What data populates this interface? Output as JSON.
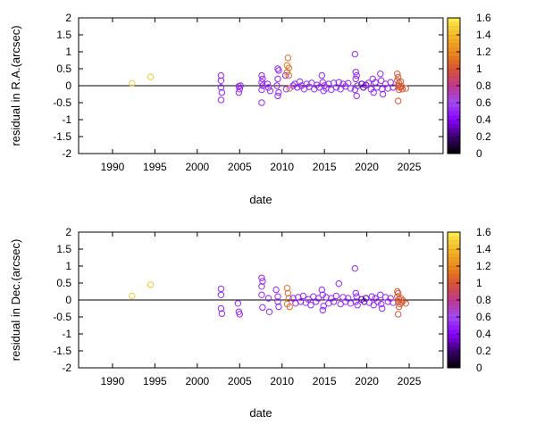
{
  "chart_data": [
    {
      "type": "scatter",
      "xlabel": "date",
      "ylabel": "residual in R.A.(arcsec)",
      "xlim": [
        1986,
        2029
      ],
      "ylim": [
        -2,
        2
      ],
      "xticks": [
        "1990",
        "1995",
        "2000",
        "2005",
        "2010",
        "2015",
        "2020",
        "2025"
      ],
      "yticks": [
        "-2",
        "-1.5",
        "-1",
        "-0.5",
        "0",
        "0.5",
        "1",
        "1.5",
        "2"
      ],
      "zero_line": true,
      "grid": false,
      "colorbar": {
        "range": [
          0,
          1.6
        ],
        "ticks": [
          "0",
          "0.2",
          "0.4",
          "0.6",
          "0.8",
          "1",
          "1.2",
          "1.4",
          "1.6"
        ],
        "palette": [
          "#000000",
          "#3b006e",
          "#8a00ff",
          "#a24af2",
          "#c0388f",
          "#d8542f",
          "#ee8a1c",
          "#f4b82a",
          "#fff04a"
        ]
      },
      "points": [
        {
          "x": 1992.3,
          "y": 0.07,
          "c": 1.45
        },
        {
          "x": 1994.5,
          "y": 0.26,
          "c": 1.45
        },
        {
          "x": 2002.8,
          "y": 0.3,
          "c": 0.5
        },
        {
          "x": 2002.8,
          "y": 0.15,
          "c": 0.5
        },
        {
          "x": 2002.8,
          "y": -0.05,
          "c": 0.5
        },
        {
          "x": 2002.9,
          "y": -0.2,
          "c": 0.5
        },
        {
          "x": 2002.8,
          "y": -0.42,
          "c": 0.5
        },
        {
          "x": 2004.9,
          "y": -0.02,
          "c": 0.5
        },
        {
          "x": 2005.0,
          "y": -0.1,
          "c": 0.5
        },
        {
          "x": 2004.9,
          "y": -0.2,
          "c": 0.5
        },
        {
          "x": 2005.1,
          "y": 0.0,
          "c": 0.5
        },
        {
          "x": 2007.6,
          "y": 0.3,
          "c": 0.5
        },
        {
          "x": 2007.7,
          "y": 0.2,
          "c": 0.5
        },
        {
          "x": 2007.6,
          "y": 0.1,
          "c": 0.5
        },
        {
          "x": 2007.7,
          "y": 0.0,
          "c": 0.5
        },
        {
          "x": 2007.6,
          "y": -0.12,
          "c": 0.5
        },
        {
          "x": 2007.6,
          "y": -0.5,
          "c": 0.5
        },
        {
          "x": 2008.3,
          "y": 0.05,
          "c": 0.5
        },
        {
          "x": 2008.4,
          "y": -0.05,
          "c": 0.5
        },
        {
          "x": 2008.6,
          "y": -0.15,
          "c": 0.5
        },
        {
          "x": 2009.5,
          "y": 0.5,
          "c": 0.5
        },
        {
          "x": 2009.6,
          "y": 0.45,
          "c": 0.5
        },
        {
          "x": 2009.5,
          "y": 0.2,
          "c": 0.5
        },
        {
          "x": 2009.4,
          "y": 0.0,
          "c": 0.5
        },
        {
          "x": 2009.6,
          "y": -0.2,
          "c": 0.5
        },
        {
          "x": 2009.5,
          "y": -0.3,
          "c": 0.5
        },
        {
          "x": 2010.4,
          "y": 0.3,
          "c": 0.5
        },
        {
          "x": 2010.5,
          "y": -0.1,
          "c": 0.5
        },
        {
          "x": 2010.7,
          "y": 0.82,
          "c": 1.1
        },
        {
          "x": 2010.6,
          "y": 0.6,
          "c": 1.1
        },
        {
          "x": 2010.8,
          "y": 0.52,
          "c": 1.1
        },
        {
          "x": 2010.6,
          "y": 0.4,
          "c": 1.1
        },
        {
          "x": 2010.8,
          "y": 0.3,
          "c": 1.1
        },
        {
          "x": 2010.9,
          "y": -0.08,
          "c": 1.1
        },
        {
          "x": 2011.3,
          "y": 0.0,
          "c": 0.5
        },
        {
          "x": 2011.5,
          "y": 0.05,
          "c": 0.5
        },
        {
          "x": 2011.8,
          "y": -0.05,
          "c": 0.5
        },
        {
          "x": 2012.1,
          "y": 0.12,
          "c": 0.5
        },
        {
          "x": 2012.3,
          "y": 0.0,
          "c": 0.5
        },
        {
          "x": 2012.6,
          "y": -0.1,
          "c": 0.5
        },
        {
          "x": 2012.9,
          "y": 0.05,
          "c": 0.5
        },
        {
          "x": 2013.2,
          "y": -0.03,
          "c": 0.5
        },
        {
          "x": 2013.5,
          "y": 0.08,
          "c": 0.5
        },
        {
          "x": 2013.8,
          "y": -0.1,
          "c": 0.5
        },
        {
          "x": 2014.1,
          "y": 0.02,
          "c": 0.5
        },
        {
          "x": 2014.4,
          "y": -0.05,
          "c": 0.5
        },
        {
          "x": 2014.7,
          "y": 0.3,
          "c": 0.5
        },
        {
          "x": 2014.8,
          "y": 0.1,
          "c": 0.5
        },
        {
          "x": 2014.9,
          "y": -0.15,
          "c": 0.5
        },
        {
          "x": 2015.0,
          "y": 0.0,
          "c": 0.5
        },
        {
          "x": 2015.2,
          "y": -0.08,
          "c": 0.5
        },
        {
          "x": 2015.5,
          "y": 0.05,
          "c": 0.5
        },
        {
          "x": 2015.8,
          "y": -0.12,
          "c": 0.5
        },
        {
          "x": 2016.1,
          "y": 0.08,
          "c": 0.5
        },
        {
          "x": 2016.4,
          "y": -0.05,
          "c": 0.5
        },
        {
          "x": 2016.7,
          "y": 0.1,
          "c": 0.5
        },
        {
          "x": 2016.9,
          "y": -0.1,
          "c": 0.5
        },
        {
          "x": 2017.2,
          "y": 0.05,
          "c": 0.5
        },
        {
          "x": 2017.5,
          "y": -0.02,
          "c": 0.5
        },
        {
          "x": 2017.8,
          "y": 0.07,
          "c": 0.5
        },
        {
          "x": 2018.1,
          "y": -0.08,
          "c": 0.5
        },
        {
          "x": 2018.6,
          "y": 0.93,
          "c": 0.5
        },
        {
          "x": 2018.7,
          "y": 0.4,
          "c": 0.5
        },
        {
          "x": 2018.8,
          "y": 0.3,
          "c": 0.5
        },
        {
          "x": 2018.7,
          "y": 0.2,
          "c": 0.5
        },
        {
          "x": 2018.9,
          "y": 0.0,
          "c": 0.5
        },
        {
          "x": 2018.6,
          "y": -0.12,
          "c": 0.5
        },
        {
          "x": 2018.8,
          "y": -0.3,
          "c": 0.5
        },
        {
          "x": 2019.4,
          "y": 0.05,
          "c": 0.3
        },
        {
          "x": 2019.6,
          "y": -0.05,
          "c": 0.3
        },
        {
          "x": 2019.9,
          "y": 0.02,
          "c": 0.3
        },
        {
          "x": 2020.2,
          "y": 0.08,
          "c": 0.5
        },
        {
          "x": 2020.5,
          "y": -0.1,
          "c": 0.5
        },
        {
          "x": 2020.7,
          "y": 0.2,
          "c": 0.5
        },
        {
          "x": 2020.8,
          "y": -0.2,
          "c": 0.5
        },
        {
          "x": 2021.0,
          "y": 0.1,
          "c": 0.5
        },
        {
          "x": 2021.2,
          "y": -0.05,
          "c": 0.5
        },
        {
          "x": 2021.6,
          "y": 0.35,
          "c": 0.5
        },
        {
          "x": 2021.7,
          "y": 0.15,
          "c": 0.5
        },
        {
          "x": 2021.8,
          "y": -0.1,
          "c": 0.5
        },
        {
          "x": 2021.9,
          "y": -0.25,
          "c": 0.5
        },
        {
          "x": 2022.2,
          "y": 0.05,
          "c": 0.5
        },
        {
          "x": 2022.5,
          "y": -0.08,
          "c": 0.5
        },
        {
          "x": 2022.8,
          "y": 0.1,
          "c": 0.5
        },
        {
          "x": 2023.1,
          "y": -0.05,
          "c": 0.5
        },
        {
          "x": 2023.6,
          "y": 0.35,
          "c": 1.0
        },
        {
          "x": 2023.7,
          "y": 0.25,
          "c": 1.0
        },
        {
          "x": 2023.6,
          "y": 0.15,
          "c": 1.0
        },
        {
          "x": 2023.8,
          "y": 0.08,
          "c": 1.0
        },
        {
          "x": 2023.7,
          "y": 0.0,
          "c": 1.0
        },
        {
          "x": 2023.9,
          "y": -0.05,
          "c": 1.0
        },
        {
          "x": 2023.8,
          "y": -0.12,
          "c": 1.0
        },
        {
          "x": 2023.7,
          "y": -0.45,
          "c": 1.0
        },
        {
          "x": 2024.0,
          "y": 0.12,
          "c": 1.0
        },
        {
          "x": 2024.1,
          "y": -0.02,
          "c": 1.0
        },
        {
          "x": 2024.2,
          "y": -0.1,
          "c": 1.0
        },
        {
          "x": 2024.6,
          "y": -0.08,
          "c": 1.0
        }
      ]
    },
    {
      "type": "scatter",
      "xlabel": "date",
      "ylabel": "residual in Dec.(arcsec)",
      "xlim": [
        1986,
        2029
      ],
      "ylim": [
        -2,
        2
      ],
      "xticks": [
        "1990",
        "1995",
        "2000",
        "2005",
        "2010",
        "2015",
        "2020",
        "2025"
      ],
      "yticks": [
        "-2",
        "-1.5",
        "-1",
        "-0.5",
        "0",
        "0.5",
        "1",
        "1.5",
        "2"
      ],
      "zero_line": true,
      "grid": false,
      "colorbar": {
        "range": [
          0,
          1.6
        ],
        "ticks": [
          "0",
          "0.2",
          "0.4",
          "0.6",
          "0.8",
          "1",
          "1.2",
          "1.4",
          "1.6"
        ],
        "palette": [
          "#000000",
          "#3b006e",
          "#8a00ff",
          "#a24af2",
          "#c0388f",
          "#d8542f",
          "#ee8a1c",
          "#f4b82a",
          "#fff04a"
        ]
      },
      "points": [
        {
          "x": 1992.3,
          "y": 0.12,
          "c": 1.45
        },
        {
          "x": 1994.5,
          "y": 0.45,
          "c": 1.45
        },
        {
          "x": 2002.8,
          "y": 0.33,
          "c": 0.5
        },
        {
          "x": 2002.8,
          "y": 0.15,
          "c": 0.5
        },
        {
          "x": 2002.8,
          "y": -0.25,
          "c": 0.5
        },
        {
          "x": 2002.9,
          "y": -0.4,
          "c": 0.5
        },
        {
          "x": 2004.8,
          "y": -0.1,
          "c": 0.5
        },
        {
          "x": 2004.9,
          "y": -0.35,
          "c": 0.5
        },
        {
          "x": 2005.0,
          "y": -0.42,
          "c": 0.5
        },
        {
          "x": 2007.6,
          "y": 0.65,
          "c": 0.5
        },
        {
          "x": 2007.7,
          "y": 0.55,
          "c": 0.5
        },
        {
          "x": 2007.6,
          "y": 0.4,
          "c": 0.5
        },
        {
          "x": 2007.6,
          "y": 0.15,
          "c": 0.5
        },
        {
          "x": 2007.7,
          "y": -0.22,
          "c": 0.5
        },
        {
          "x": 2008.5,
          "y": -0.35,
          "c": 0.5
        },
        {
          "x": 2008.4,
          "y": 0.05,
          "c": 0.5
        },
        {
          "x": 2009.3,
          "y": 0.3,
          "c": 0.5
        },
        {
          "x": 2009.5,
          "y": 0.1,
          "c": 0.5
        },
        {
          "x": 2009.5,
          "y": -0.05,
          "c": 0.5
        },
        {
          "x": 2009.6,
          "y": -0.2,
          "c": 0.5
        },
        {
          "x": 2010.6,
          "y": 0.35,
          "c": 1.1
        },
        {
          "x": 2010.7,
          "y": 0.2,
          "c": 1.1
        },
        {
          "x": 2010.8,
          "y": 0.05,
          "c": 1.1
        },
        {
          "x": 2010.6,
          "y": -0.12,
          "c": 1.1
        },
        {
          "x": 2010.9,
          "y": -0.2,
          "c": 1.1
        },
        {
          "x": 2011.3,
          "y": 0.05,
          "c": 0.5
        },
        {
          "x": 2011.6,
          "y": -0.1,
          "c": 0.5
        },
        {
          "x": 2011.9,
          "y": 0.08,
          "c": 0.5
        },
        {
          "x": 2012.2,
          "y": -0.05,
          "c": 0.5
        },
        {
          "x": 2012.5,
          "y": 0.12,
          "c": 0.5
        },
        {
          "x": 2012.8,
          "y": -0.08,
          "c": 0.5
        },
        {
          "x": 2013.1,
          "y": 0.02,
          "c": 0.5
        },
        {
          "x": 2013.4,
          "y": -0.15,
          "c": 0.5
        },
        {
          "x": 2013.7,
          "y": 0.1,
          "c": 0.5
        },
        {
          "x": 2014.0,
          "y": -0.05,
          "c": 0.5
        },
        {
          "x": 2014.3,
          "y": 0.05,
          "c": 0.5
        },
        {
          "x": 2014.7,
          "y": 0.3,
          "c": 0.5
        },
        {
          "x": 2014.8,
          "y": 0.15,
          "c": 0.5
        },
        {
          "x": 2014.9,
          "y": -0.18,
          "c": 0.5
        },
        {
          "x": 2014.8,
          "y": -0.3,
          "c": 0.5
        },
        {
          "x": 2015.2,
          "y": 0.08,
          "c": 0.5
        },
        {
          "x": 2015.5,
          "y": -0.1,
          "c": 0.5
        },
        {
          "x": 2015.8,
          "y": 0.05,
          "c": 0.5
        },
        {
          "x": 2016.1,
          "y": -0.05,
          "c": 0.5
        },
        {
          "x": 2016.4,
          "y": 0.12,
          "c": 0.5
        },
        {
          "x": 2016.7,
          "y": 0.48,
          "c": 0.5
        },
        {
          "x": 2016.9,
          "y": -0.12,
          "c": 0.5
        },
        {
          "x": 2017.2,
          "y": 0.08,
          "c": 0.5
        },
        {
          "x": 2017.5,
          "y": -0.05,
          "c": 0.5
        },
        {
          "x": 2017.8,
          "y": 0.05,
          "c": 0.5
        },
        {
          "x": 2018.1,
          "y": -0.1,
          "c": 0.5
        },
        {
          "x": 2018.6,
          "y": 0.93,
          "c": 0.5
        },
        {
          "x": 2018.7,
          "y": 0.2,
          "c": 0.5
        },
        {
          "x": 2018.8,
          "y": 0.1,
          "c": 0.5
        },
        {
          "x": 2018.7,
          "y": -0.05,
          "c": 0.5
        },
        {
          "x": 2018.9,
          "y": -0.15,
          "c": 0.5
        },
        {
          "x": 2019.4,
          "y": 0.02,
          "c": 0.3
        },
        {
          "x": 2019.7,
          "y": -0.05,
          "c": 0.3
        },
        {
          "x": 2019.9,
          "y": 0.05,
          "c": 0.3
        },
        {
          "x": 2020.3,
          "y": -0.08,
          "c": 0.5
        },
        {
          "x": 2020.6,
          "y": 0.1,
          "c": 0.5
        },
        {
          "x": 2020.8,
          "y": -0.15,
          "c": 0.5
        },
        {
          "x": 2021.0,
          "y": 0.05,
          "c": 0.5
        },
        {
          "x": 2021.3,
          "y": -0.05,
          "c": 0.5
        },
        {
          "x": 2021.6,
          "y": 0.15,
          "c": 0.5
        },
        {
          "x": 2021.7,
          "y": -0.12,
          "c": 0.5
        },
        {
          "x": 2021.8,
          "y": -0.25,
          "c": 0.5
        },
        {
          "x": 2022.2,
          "y": 0.08,
          "c": 0.5
        },
        {
          "x": 2022.5,
          "y": -0.05,
          "c": 0.5
        },
        {
          "x": 2022.8,
          "y": 0.05,
          "c": 0.5
        },
        {
          "x": 2023.1,
          "y": -0.08,
          "c": 0.5
        },
        {
          "x": 2023.6,
          "y": 0.25,
          "c": 1.0
        },
        {
          "x": 2023.7,
          "y": 0.2,
          "c": 1.0
        },
        {
          "x": 2023.6,
          "y": 0.1,
          "c": 1.0
        },
        {
          "x": 2023.8,
          "y": 0.02,
          "c": 1.0
        },
        {
          "x": 2023.7,
          "y": -0.05,
          "c": 1.0
        },
        {
          "x": 2023.9,
          "y": -0.12,
          "c": 1.0
        },
        {
          "x": 2023.8,
          "y": -0.2,
          "c": 1.0
        },
        {
          "x": 2023.7,
          "y": -0.42,
          "c": 1.0
        },
        {
          "x": 2024.0,
          "y": 0.05,
          "c": 1.0
        },
        {
          "x": 2024.1,
          "y": -0.08,
          "c": 1.0
        },
        {
          "x": 2024.3,
          "y": -0.02,
          "c": 1.0
        },
        {
          "x": 2024.6,
          "y": -0.1,
          "c": 1.0
        }
      ]
    }
  ]
}
